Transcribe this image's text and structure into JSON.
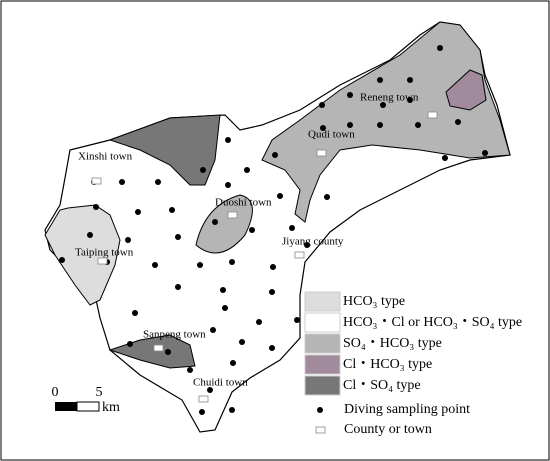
{
  "towns": [
    "Reneng town",
    "Qudi town",
    "Xinshi town",
    "Duoshi town",
    "Jiyang county",
    "Taiping town",
    "Sanpeng town",
    "Chuidi town"
  ],
  "legend": [
    "HCO₃ type",
    "HCO₃・Cl or HCO₃・SO₄ type",
    "SO₄・HCO₃ type",
    "Cl・HCO₃ type",
    "Cl・SO₄ type",
    "Diving sampling point",
    "County or town"
  ],
  "scale": {
    "start": "0",
    "end": "5",
    "unit": "km"
  }
}
